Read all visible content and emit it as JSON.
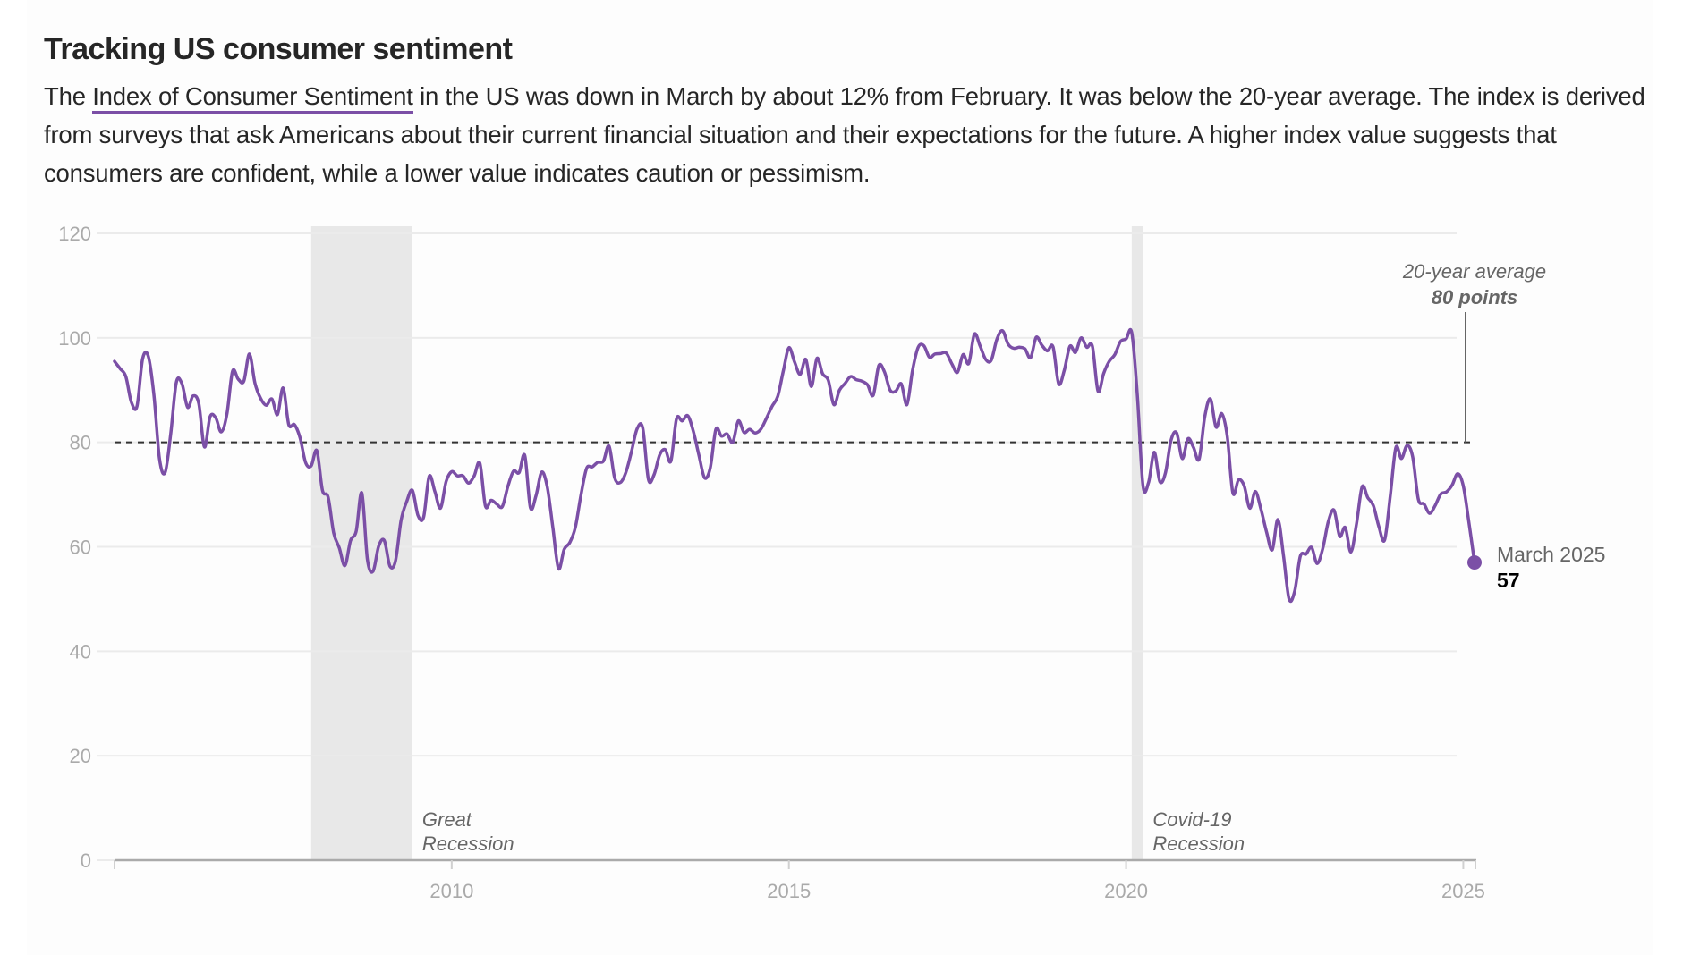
{
  "header": {
    "title": "Tracking US consumer sentiment",
    "description_before": "The ",
    "description_link": "Index of Consumer Sentiment",
    "description_after": " in the US was down in March by about 12% from February. It was below the 20-year average. The index is derived from surveys that ask Americans about their current financial situation and their expectations for the future. A higher index value suggests that consumers are confident, while a lower value indicates caution or pessimism."
  },
  "colors": {
    "line": "#7b4fa6",
    "recession_band": "#e8e8e8",
    "gridline": "#ebebeb",
    "average_line": "#333333",
    "axis": "#aaaaaa"
  },
  "chart_data": {
    "type": "line",
    "title": "Tracking US consumer sentiment",
    "xlabel": "",
    "ylabel": "",
    "ylim": [
      0,
      120
    ],
    "yticks": [
      0,
      20,
      40,
      60,
      80,
      100,
      120
    ],
    "xlim": [
      "2005-01",
      "2025-03"
    ],
    "xticks": [
      2010,
      2015,
      2020,
      2025
    ],
    "grid": true,
    "legend": "none",
    "series": [
      {
        "name": "Index of Consumer Sentiment",
        "start": "2005-01",
        "frequency": "monthly",
        "values": [
          95.5,
          94.1,
          92.6,
          87.7,
          86.9,
          96.0,
          96.5,
          89.1,
          76.9,
          74.2,
          81.6,
          91.5,
          91.2,
          86.7,
          88.9,
          87.4,
          79.1,
          84.9,
          84.7,
          82.0,
          85.4,
          93.6,
          92.1,
          91.7,
          96.9,
          91.3,
          88.4,
          87.1,
          88.3,
          85.3,
          90.4,
          83.4,
          83.4,
          80.9,
          76.1,
          75.5,
          78.4,
          70.8,
          69.5,
          62.6,
          59.8,
          56.4,
          61.2,
          63.0,
          70.3,
          57.6,
          55.3,
          60.1,
          61.2,
          56.3,
          57.3,
          65.1,
          68.7,
          70.8,
          66.0,
          65.7,
          73.5,
          70.6,
          67.4,
          72.5,
          74.4,
          73.6,
          73.6,
          72.2,
          73.6,
          76.0,
          67.8,
          68.9,
          68.2,
          67.7,
          71.6,
          74.5,
          74.2,
          77.5,
          67.5,
          69.8,
          74.3,
          71.5,
          63.7,
          55.8,
          59.5,
          60.8,
          63.7,
          69.9,
          75.0,
          75.3,
          76.2,
          76.4,
          79.3,
          73.2,
          72.3,
          74.3,
          78.3,
          82.6,
          82.7,
          72.9,
          73.8,
          77.6,
          78.6,
          76.4,
          84.5,
          84.1,
          85.1,
          82.1,
          77.5,
          73.2,
          75.1,
          82.5,
          81.2,
          81.6,
          80.0,
          84.1,
          81.9,
          82.5,
          81.8,
          82.5,
          84.6,
          86.9,
          88.8,
          93.6,
          98.1,
          95.4,
          93.0,
          95.9,
          90.7,
          96.1,
          93.1,
          91.9,
          87.2,
          90.0,
          91.3,
          92.6,
          92.0,
          91.7,
          91.0,
          89.0,
          94.7,
          93.5,
          90.0,
          89.8,
          91.2,
          87.2,
          93.8,
          98.2,
          98.5,
          96.3,
          96.9,
          97.0,
          97.1,
          95.0,
          93.4,
          96.8,
          95.1,
          100.7,
          98.5,
          95.9,
          95.7,
          99.7,
          101.4,
          98.8,
          98.0,
          98.2,
          97.9,
          96.2,
          100.1,
          98.6,
          97.5,
          98.3,
          91.2,
          93.8,
          98.4,
          97.2,
          100.0,
          98.2,
          98.4,
          89.8,
          93.2,
          95.5,
          96.8,
          99.3,
          99.8,
          101.0,
          89.1,
          71.8,
          72.3,
          78.1,
          72.5,
          74.1,
          80.4,
          81.8,
          76.9,
          80.7,
          79.0,
          76.8,
          84.9,
          88.3,
          82.9,
          85.5,
          81.2,
          70.3,
          72.8,
          71.7,
          67.4,
          70.6,
          67.2,
          62.8,
          59.4,
          65.2,
          58.4,
          50.0,
          51.5,
          58.2,
          58.6,
          59.9,
          56.8,
          59.7,
          64.9,
          67.0,
          62.0,
          63.7,
          59.0,
          64.4,
          71.5,
          69.4,
          67.9,
          63.8,
          61.3,
          69.7,
          79.0,
          76.9,
          79.4,
          77.2,
          69.1,
          68.2,
          66.4,
          67.9,
          70.1,
          70.5,
          71.8,
          74.0,
          71.7,
          64.7,
          57.0
        ]
      }
    ],
    "reference_lines": [
      {
        "name": "20-year average",
        "value": 80,
        "label_line1": "20-year average",
        "label_line2": "80 points"
      }
    ],
    "shaded_regions": [
      {
        "name": "Great Recession",
        "start": "2007-12",
        "end": "2009-06",
        "label_line1": "Great",
        "label_line2": "Recession"
      },
      {
        "name": "Covid-19 Recession",
        "start": "2020-02",
        "end": "2020-04",
        "label_line1": "Covid-19",
        "label_line2": "Recession"
      }
    ],
    "end_annotation": {
      "label": "March 2025",
      "value": "57"
    }
  }
}
